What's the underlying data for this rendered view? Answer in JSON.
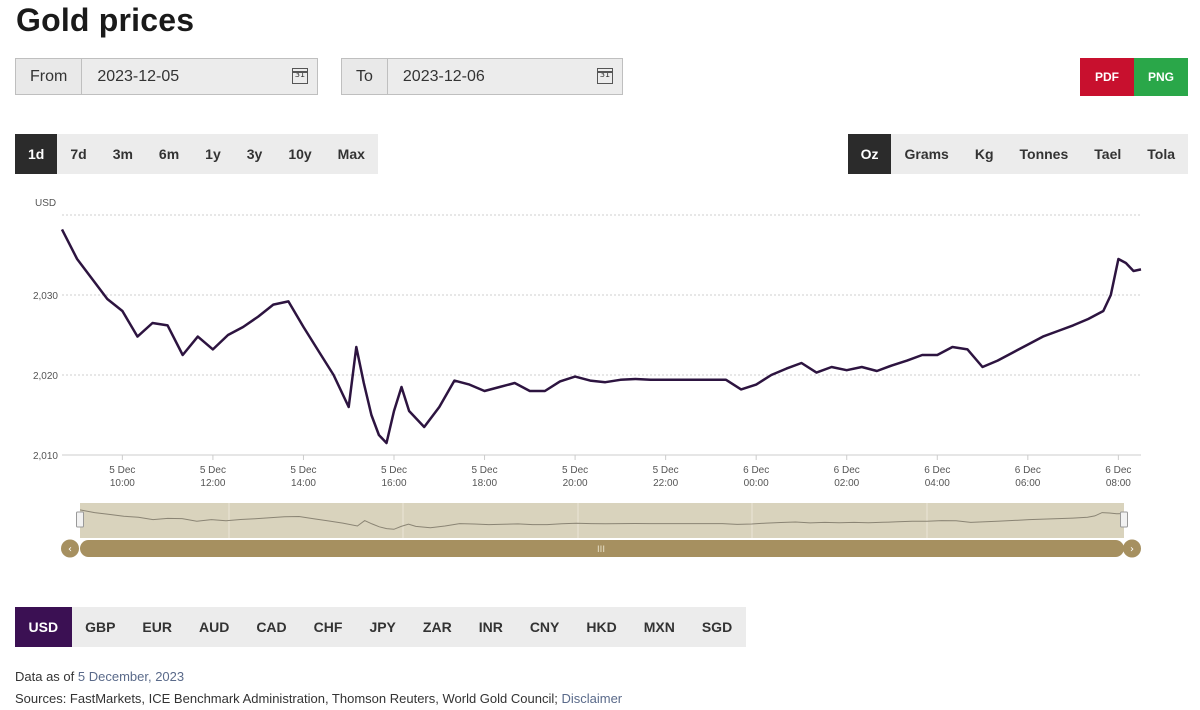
{
  "page": {
    "title": "Gold prices"
  },
  "date_range": {
    "from_label": "From",
    "from_value": "2023-12-05",
    "to_label": "To",
    "to_value": "2023-12-06",
    "calendar_icon": "calendar-icon",
    "calendar_day": "31"
  },
  "export": {
    "pdf_label": "PDF",
    "pdf_color": "#c8102e",
    "png_label": "PNG",
    "png_color": "#2aa749"
  },
  "periods": {
    "active": 0,
    "items": [
      "1d",
      "7d",
      "3m",
      "6m",
      "1y",
      "3y",
      "10y",
      "Max"
    ]
  },
  "units": {
    "active": 0,
    "items": [
      "Oz",
      "Grams",
      "Kg",
      "Tonnes",
      "Tael",
      "Tola"
    ]
  },
  "chart_data": {
    "type": "line",
    "ylabel": "USD",
    "ylim": [
      2010,
      2040
    ],
    "yticks": [
      2010,
      2020,
      2030
    ],
    "ytick_labels": [
      "2,010",
      "2,020",
      "2,030"
    ],
    "x_tick_labels": [
      [
        "5 Dec",
        "10:00"
      ],
      [
        "5 Dec",
        "12:00"
      ],
      [
        "5 Dec",
        "14:00"
      ],
      [
        "5 Dec",
        "16:00"
      ],
      [
        "5 Dec",
        "18:00"
      ],
      [
        "5 Dec",
        "20:00"
      ],
      [
        "5 Dec",
        "22:00"
      ],
      [
        "6 Dec",
        "00:00"
      ],
      [
        "6 Dec",
        "02:00"
      ],
      [
        "6 Dec",
        "04:00"
      ],
      [
        "6 Dec",
        "06:00"
      ],
      [
        "6 Dec",
        "08:00"
      ]
    ],
    "x_range": [
      "2023-12-05 08:40",
      "2023-12-06 08:30"
    ],
    "grid": true,
    "line_color": "#2d1440",
    "series": [
      {
        "x": [
          "2023-12-05 08:40",
          "2023-12-05 09:00",
          "2023-12-05 09:20",
          "2023-12-05 09:40",
          "2023-12-05 10:00",
          "2023-12-05 10:20",
          "2023-12-05 10:40",
          "2023-12-05 11:00",
          "2023-12-05 11:20",
          "2023-12-05 11:40",
          "2023-12-05 12:00",
          "2023-12-05 12:20",
          "2023-12-05 12:40",
          "2023-12-05 13:00",
          "2023-12-05 13:20",
          "2023-12-05 13:40",
          "2023-12-05 14:00",
          "2023-12-05 14:20",
          "2023-12-05 14:40",
          "2023-12-05 15:00",
          "2023-12-05 15:10",
          "2023-12-05 15:20",
          "2023-12-05 15:30",
          "2023-12-05 15:40",
          "2023-12-05 15:50",
          "2023-12-05 16:00",
          "2023-12-05 16:10",
          "2023-12-05 16:20",
          "2023-12-05 16:40",
          "2023-12-05 17:00",
          "2023-12-05 17:20",
          "2023-12-05 17:40",
          "2023-12-05 18:00",
          "2023-12-05 18:20",
          "2023-12-05 18:40",
          "2023-12-05 19:00",
          "2023-12-05 19:20",
          "2023-12-05 19:40",
          "2023-12-05 20:00",
          "2023-12-05 20:20",
          "2023-12-05 20:40",
          "2023-12-05 21:00",
          "2023-12-05 21:20",
          "2023-12-05 21:40",
          "2023-12-05 22:00",
          "2023-12-05 22:20",
          "2023-12-05 22:40",
          "2023-12-05 23:00",
          "2023-12-05 23:20",
          "2023-12-05 23:40",
          "2023-12-06 00:00",
          "2023-12-06 00:20",
          "2023-12-06 00:40",
          "2023-12-06 01:00",
          "2023-12-06 01:20",
          "2023-12-06 01:40",
          "2023-12-06 02:00",
          "2023-12-06 02:20",
          "2023-12-06 02:40",
          "2023-12-06 03:00",
          "2023-12-06 03:20",
          "2023-12-06 03:40",
          "2023-12-06 04:00",
          "2023-12-06 04:20",
          "2023-12-06 04:40",
          "2023-12-06 05:00",
          "2023-12-06 05:20",
          "2023-12-06 05:40",
          "2023-12-06 06:00",
          "2023-12-06 06:20",
          "2023-12-06 06:40",
          "2023-12-06 07:00",
          "2023-12-06 07:20",
          "2023-12-06 07:40",
          "2023-12-06 07:50",
          "2023-12-06 08:00",
          "2023-12-06 08:10",
          "2023-12-06 08:20",
          "2023-12-06 08:30"
        ],
        "y": [
          2038.2,
          2034.5,
          2032.0,
          2029.5,
          2028.0,
          2024.8,
          2026.5,
          2026.2,
          2022.5,
          2024.8,
          2023.2,
          2025.0,
          2026.0,
          2027.3,
          2028.8,
          2029.2,
          2026.0,
          2023.0,
          2020.0,
          2016.0,
          2023.5,
          2019.0,
          2015.0,
          2012.5,
          2011.5,
          2015.5,
          2018.5,
          2015.5,
          2013.5,
          2016.0,
          2019.3,
          2018.8,
          2018.0,
          2018.5,
          2019.0,
          2018.0,
          2018.0,
          2019.2,
          2019.8,
          2019.3,
          2019.1,
          2019.4,
          2019.5,
          2019.4,
          2019.4,
          2019.4,
          2019.4,
          2019.4,
          2019.4,
          2018.2,
          2018.8,
          2020.0,
          2020.8,
          2021.5,
          2020.3,
          2021.0,
          2020.6,
          2021.0,
          2020.5,
          2021.2,
          2021.8,
          2022.5,
          2022.5,
          2023.5,
          2023.2,
          2021.0,
          2021.8,
          2022.8,
          2023.8,
          2024.8,
          2025.5,
          2026.2,
          2027.0,
          2028.0,
          2030.0,
          2034.5,
          2034.0,
          2033.0,
          2033.2
        ]
      }
    ]
  },
  "navigator": {
    "fill_color": "#d9d3bd",
    "bar_color": "#a69060",
    "grip_label": "III"
  },
  "currencies": {
    "active": 0,
    "items": [
      "USD",
      "GBP",
      "EUR",
      "AUD",
      "CAD",
      "CHF",
      "JPY",
      "ZAR",
      "INR",
      "CNY",
      "HKD",
      "MXN",
      "SGD"
    ]
  },
  "footer": {
    "data_as_of_label": "Data as of",
    "data_as_of_date": "5 December, 2023",
    "sources_text": "Sources: FastMarkets, ICE Benchmark Administration, Thomson Reuters, World Gold Council;",
    "disclaimer_label": "Disclaimer"
  }
}
